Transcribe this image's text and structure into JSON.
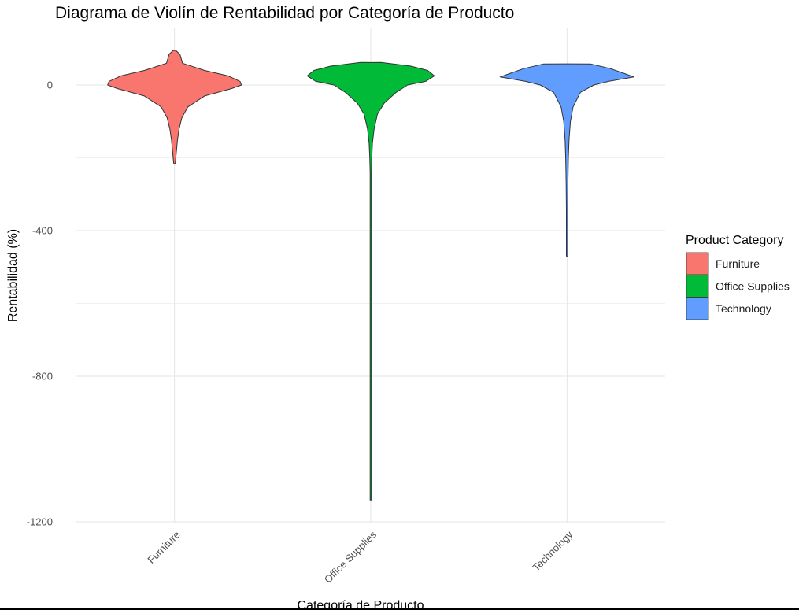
{
  "chart_data": {
    "type": "violin",
    "title": "Diagrama de Violín de Rentabilidad por Categoría de Producto",
    "xlabel": "Categoría de Producto",
    "ylabel": "Rentabilidad (%)",
    "ylim": [
      -1200,
      150
    ],
    "yticks": [
      0,
      -400,
      -800,
      -1200
    ],
    "grid": true,
    "legend": {
      "title": "Product Category",
      "position": "right"
    },
    "categories": [
      "Furniture",
      "Office Supplies",
      "Technology"
    ],
    "series": [
      {
        "name": "Furniture",
        "color": "#F8766D",
        "min": -215,
        "max": 95,
        "profile": [
          [
            95,
            0.02
          ],
          [
            85,
            0.08
          ],
          [
            60,
            0.12
          ],
          [
            40,
            0.45
          ],
          [
            25,
            0.8
          ],
          [
            10,
            0.98
          ],
          [
            0,
            1.0
          ],
          [
            -10,
            0.85
          ],
          [
            -30,
            0.45
          ],
          [
            -60,
            0.2
          ],
          [
            -90,
            0.11
          ],
          [
            -120,
            0.07
          ],
          [
            -150,
            0.045
          ],
          [
            -180,
            0.03
          ],
          [
            -215,
            0.012
          ]
        ]
      },
      {
        "name": "Office Supplies",
        "color": "#00BA38",
        "min": -1140,
        "max": 62,
        "profile": [
          [
            62,
            0.15
          ],
          [
            52,
            0.6
          ],
          [
            40,
            0.85
          ],
          [
            25,
            0.95
          ],
          [
            10,
            0.82
          ],
          [
            0,
            0.55
          ],
          [
            -20,
            0.38
          ],
          [
            -50,
            0.2
          ],
          [
            -80,
            0.1
          ],
          [
            -120,
            0.05
          ],
          [
            -160,
            0.025
          ],
          [
            -200,
            0.015
          ],
          [
            -240,
            0.008
          ],
          [
            -300,
            0.005
          ],
          [
            -500,
            0.004
          ],
          [
            -800,
            0.004
          ],
          [
            -1140,
            0.003
          ]
        ]
      },
      {
        "name": "Technology",
        "color": "#619CFF",
        "min": -470,
        "max": 58,
        "profile": [
          [
            58,
            0.35
          ],
          [
            45,
            0.65
          ],
          [
            30,
            0.88
          ],
          [
            22,
            1.0
          ],
          [
            10,
            0.62
          ],
          [
            0,
            0.4
          ],
          [
            -20,
            0.2
          ],
          [
            -60,
            0.09
          ],
          [
            -100,
            0.05
          ],
          [
            -150,
            0.03
          ],
          [
            -200,
            0.02
          ],
          [
            -260,
            0.014
          ],
          [
            -340,
            0.01
          ],
          [
            -470,
            0.006
          ]
        ]
      }
    ]
  }
}
